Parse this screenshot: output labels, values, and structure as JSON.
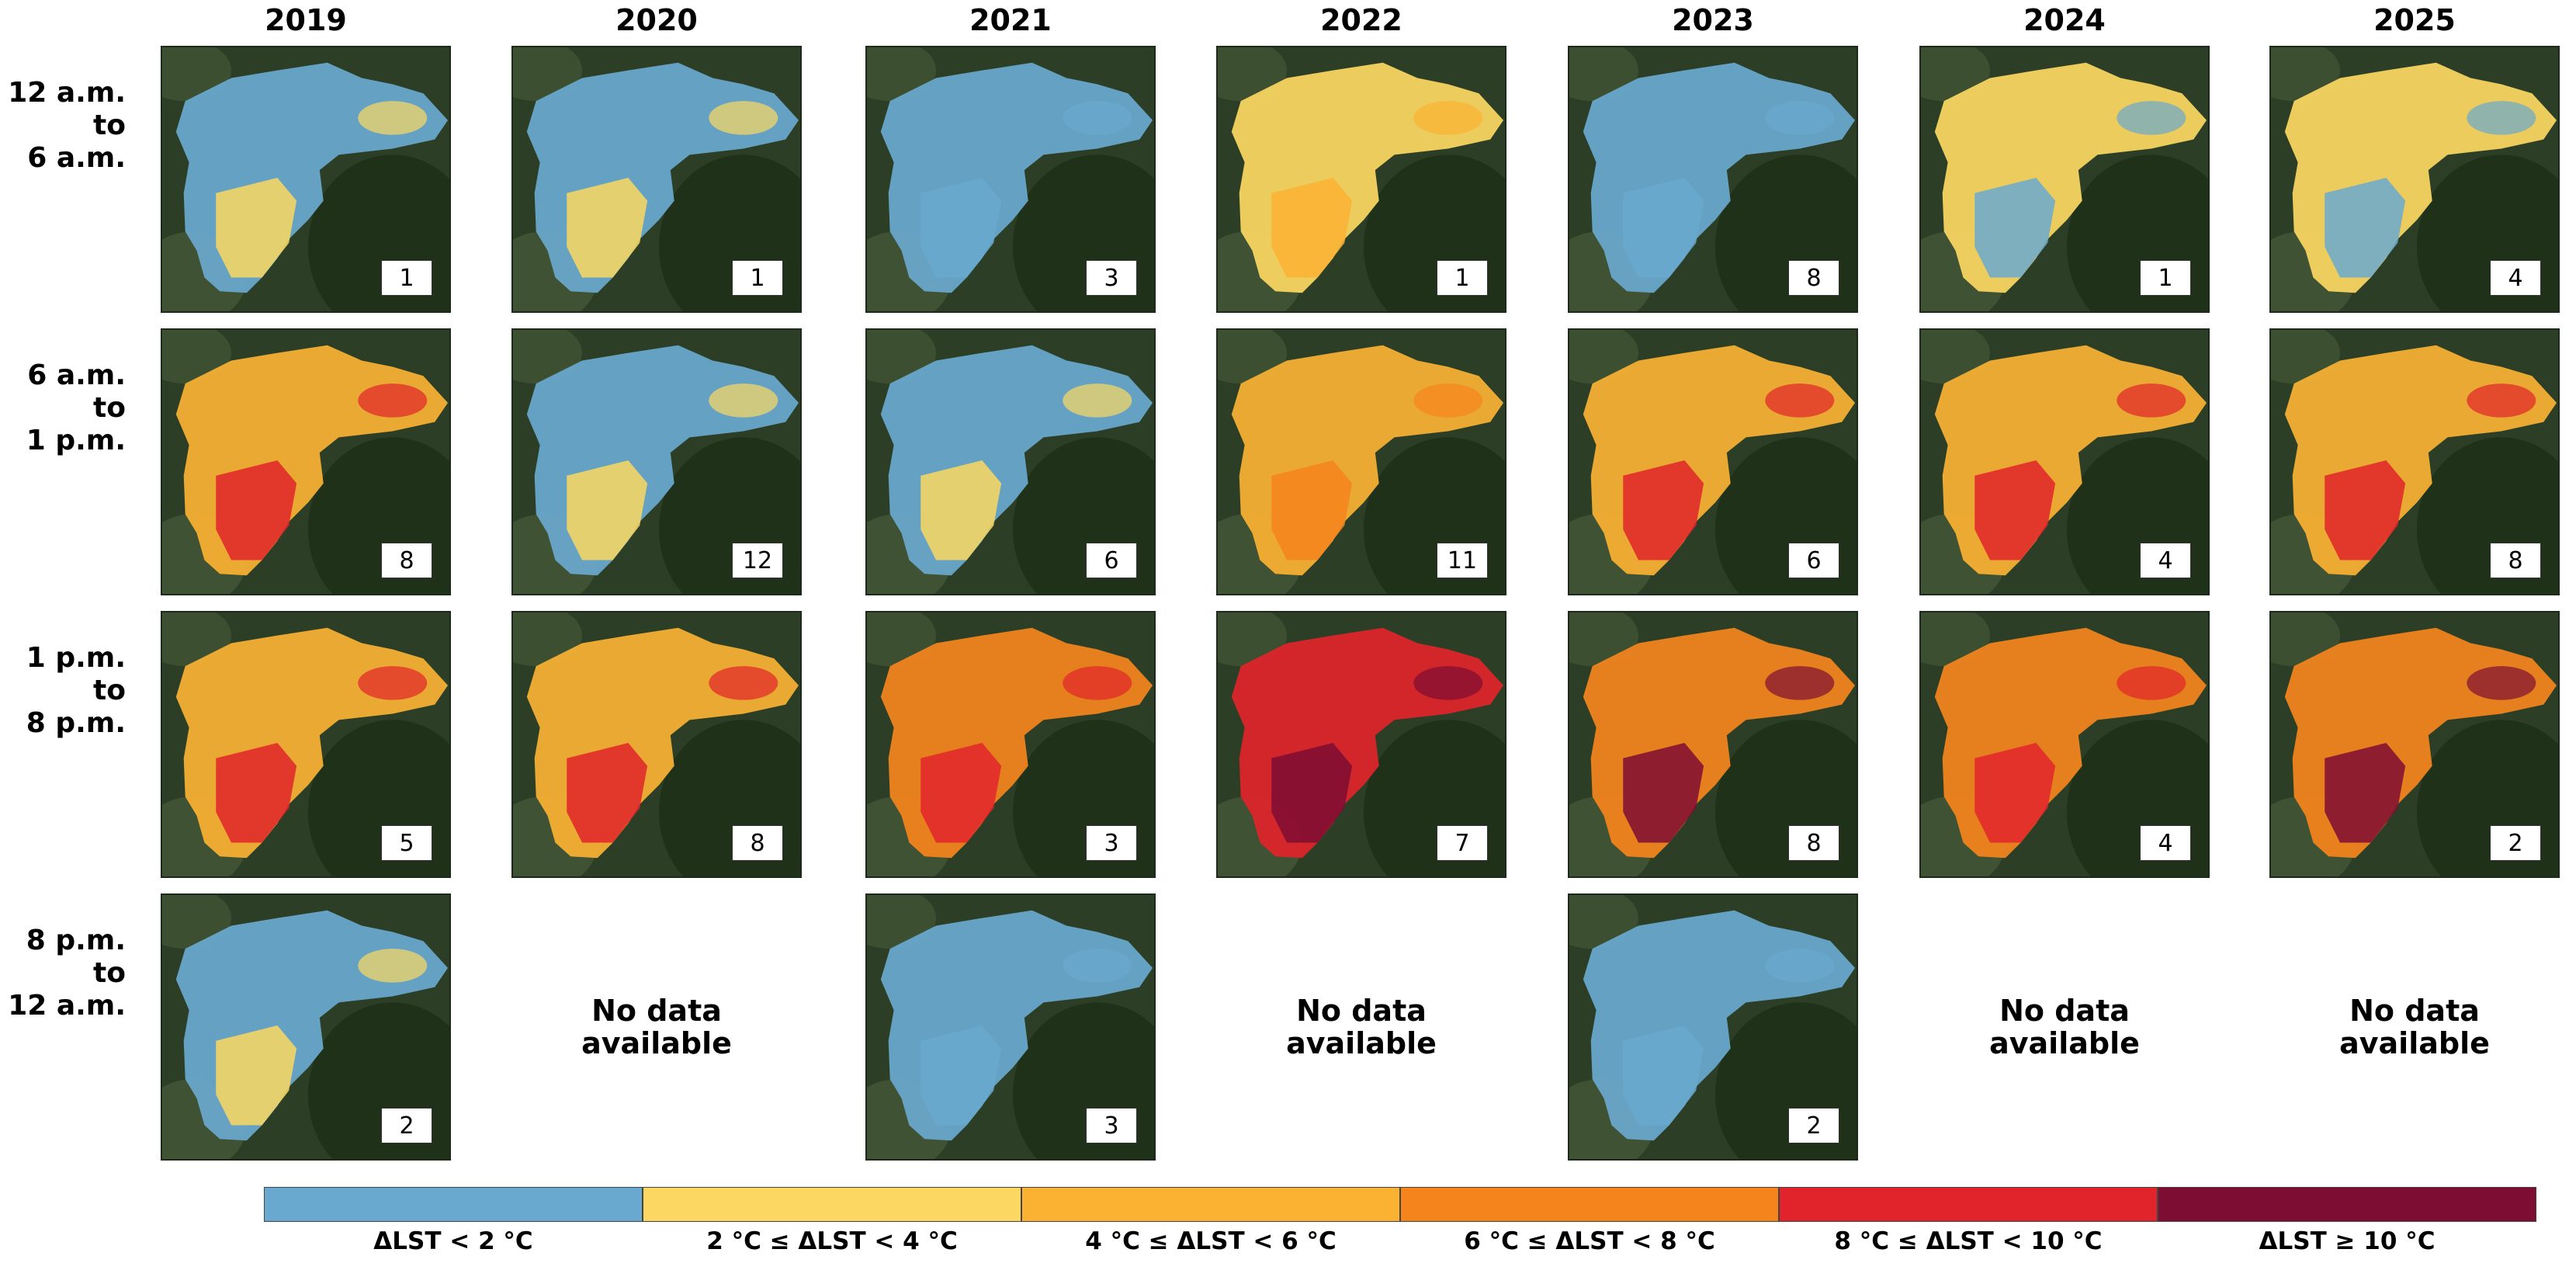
{
  "years": [
    "2019",
    "2020",
    "2021",
    "2022",
    "2023",
    "2024",
    "2025"
  ],
  "time_windows": [
    "12 a.m.\nto\n6 a.m.",
    "6 a.m.\nto\n1 p.m.",
    "1 p.m.\nto\n8 p.m.",
    "8 p.m.\nto\n12 a.m."
  ],
  "no_data_text": "No data\navailable",
  "legend": [
    {
      "label": "ΔLST < 2 °C",
      "color": "#6aa9cf"
    },
    {
      "label": "2 °C ≤ ΔLST < 4 °C",
      "color": "#fcd862"
    },
    {
      "label": "4 °C ≤ ΔLST < 6 °C",
      "color": "#fbb233"
    },
    {
      "label": "6 °C ≤ ΔLST < 8 °C",
      "color": "#f6841c"
    },
    {
      "label": "8 °C ≤ ΔLST < 10 °C",
      "color": "#e1242b"
    },
    {
      "label": "ΔLST ≥ 10 °C",
      "color": "#7e0d33"
    }
  ],
  "chart_data": {
    "type": "heatmap",
    "title": "",
    "rows": [
      "12 a.m. to 6 a.m.",
      "6 a.m. to 1 p.m.",
      "1 p.m. to 8 p.m.",
      "8 p.m. to 12 a.m."
    ],
    "columns": [
      "2019",
      "2020",
      "2021",
      "2022",
      "2023",
      "2024",
      "2025"
    ],
    "counts": [
      [
        1,
        1,
        3,
        1,
        8,
        1,
        4
      ],
      [
        8,
        12,
        6,
        11,
        6,
        4,
        8
      ],
      [
        5,
        8,
        3,
        7,
        8,
        4,
        2
      ],
      [
        2,
        null,
        3,
        null,
        2,
        null,
        null
      ]
    ],
    "dominant_class": [
      [
        0,
        0,
        0,
        1,
        0,
        1,
        1
      ],
      [
        2,
        0,
        0,
        2,
        2,
        2,
        2
      ],
      [
        2,
        2,
        3,
        4,
        3,
        3,
        3
      ],
      [
        0,
        null,
        0,
        null,
        0,
        null,
        null
      ]
    ],
    "secondary_class": [
      [
        1,
        1,
        0,
        2,
        0,
        0,
        0
      ],
      [
        4,
        1,
        1,
        3,
        4,
        4,
        4
      ],
      [
        4,
        4,
        4,
        5,
        5,
        4,
        5
      ],
      [
        1,
        null,
        0,
        null,
        0,
        null,
        null
      ]
    ]
  }
}
